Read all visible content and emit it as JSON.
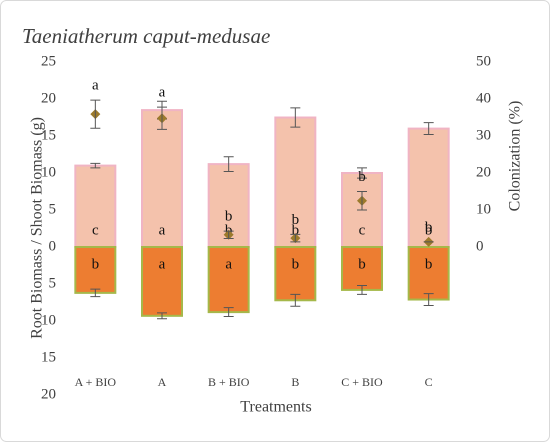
{
  "chart_data": {
    "type": "bar",
    "title": "Taeniatherum caput-medusae",
    "y_label": "Root Biomass / Shoot Biomass (g)",
    "y2_label": "Colonization (%)",
    "x_label": "Treatments",
    "categories": [
      "A + BIO",
      "A",
      "B + BIO",
      "B",
      "C + BIO",
      "C"
    ],
    "ylim": [
      -20,
      25
    ],
    "yticks": [
      {
        "value": -20,
        "label": "20"
      },
      {
        "value": -15,
        "label": "15"
      },
      {
        "value": -10,
        "label": "10"
      },
      {
        "value": -5,
        "label": "5"
      },
      0,
      5,
      10,
      15,
      20,
      25
    ],
    "y2lim": [
      -40,
      50
    ],
    "y2ticks": [
      0,
      10,
      20,
      30,
      40,
      50
    ],
    "series": [
      {
        "color": "#f4c2ac",
        "edge": "#f0b4c4",
        "values": [
          11,
          18.5,
          11.2,
          17.5,
          10,
          16
        ],
        "errors": [
          0.3,
          1.2,
          1,
          1.3,
          0.7,
          0.8
        ],
        "letters": [
          "c",
          "a",
          "b",
          "b",
          "c",
          "b"
        ]
      },
      {
        "color": "#ed7d31",
        "edge": "#a5b84a",
        "values": [
          -6.2,
          -9.3,
          -8.8,
          -7.2,
          -5.8,
          -7.1
        ],
        "errors": [
          0.5,
          0.4,
          0.6,
          0.8,
          0.6,
          0.8
        ],
        "letters": [
          "b",
          "a",
          "a",
          "b",
          "b",
          "b"
        ]
      },
      {
        "type": "scatter",
        "axis": "y2",
        "color": "#9c7a2c",
        "values": [
          35.9,
          34.8,
          3.3,
          2.4,
          12.5,
          1.4
        ],
        "errors": [
          3.8,
          3,
          1,
          1,
          2.5,
          0
        ],
        "letters": [
          "a",
          "a",
          "b",
          "b",
          "b",
          "b"
        ]
      }
    ]
  }
}
